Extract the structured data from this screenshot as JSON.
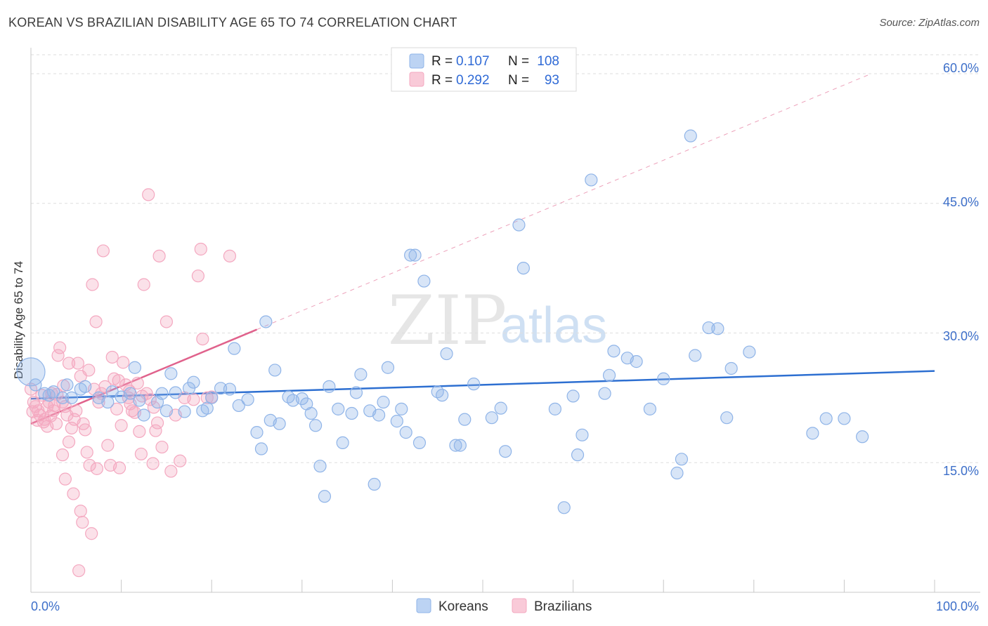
{
  "header": {
    "title": "KOREAN VS BRAZILIAN DISABILITY AGE 65 TO 74 CORRELATION CHART",
    "source": "Source: ZipAtlas.com"
  },
  "watermark": {
    "zip": "ZIP",
    "atlas": "atlas"
  },
  "colors": {
    "korean": "#8fb4e8",
    "korean_line": "#2d6fd1",
    "brazilian": "#f4a8c0",
    "brazilian_line": "#e0628c",
    "tick": "#3d6fc9",
    "grid": "#dedede"
  },
  "legend": {
    "korean": {
      "r_label": "R =",
      "r_value": "0.107",
      "n_label": "N =",
      "n_value": "108"
    },
    "brazilian": {
      "r_label": "R =",
      "r_value": "0.292",
      "n_label": "N =",
      "n_value": "93"
    }
  },
  "bottom_legend": {
    "korean": "Koreans",
    "brazilian": "Brazilians"
  },
  "chart_data": {
    "type": "scatter",
    "title": "KOREAN VS BRAZILIAN DISABILITY AGE 65 TO 74 CORRELATION CHART",
    "xlabel": "",
    "ylabel": "Disability Age 65 to 74",
    "xlim": [
      0,
      100
    ],
    "ylim": [
      0,
      63
    ],
    "x_tick_labels": [
      "0.0%",
      "100.0%"
    ],
    "y_ticks": [
      15,
      30,
      45,
      60
    ],
    "y_tick_labels": [
      "15.0%",
      "30.0%",
      "45.0%",
      "60.0%"
    ],
    "grid": true,
    "legend_position": "top-center",
    "series": [
      {
        "name": "Koreans",
        "r": 0.107,
        "n": 108,
        "trend": {
          "x": [
            0,
            100
          ],
          "y": [
            22.4,
            25.6
          ],
          "style": "solid"
        },
        "points": [
          [
            0,
            25.5
          ],
          [
            0.5,
            24
          ],
          [
            1.5,
            23
          ],
          [
            2,
            22.8
          ],
          [
            2.5,
            23.2
          ],
          [
            3.5,
            22.5
          ],
          [
            4,
            24
          ],
          [
            4.5,
            22.5
          ],
          [
            5.5,
            23.5
          ],
          [
            6,
            23.8
          ],
          [
            7.5,
            22.5
          ],
          [
            8.5,
            22
          ],
          [
            9,
            23.2
          ],
          [
            10,
            22.6
          ],
          [
            11,
            23
          ],
          [
            11.5,
            26
          ],
          [
            12,
            22.2
          ],
          [
            12.5,
            20.5
          ],
          [
            14,
            22
          ],
          [
            14.5,
            23
          ],
          [
            15,
            21
          ],
          [
            15.5,
            25.3
          ],
          [
            16,
            23.1
          ],
          [
            17,
            20.9
          ],
          [
            17.5,
            23.6
          ],
          [
            18,
            24.3
          ],
          [
            19,
            21
          ],
          [
            19.5,
            21.3
          ],
          [
            20,
            22.5
          ],
          [
            21,
            23.6
          ],
          [
            22,
            23.5
          ],
          [
            22.5,
            28.2
          ],
          [
            23,
            21.6
          ],
          [
            24,
            22.3
          ],
          [
            25,
            18.5
          ],
          [
            25.5,
            16.6
          ],
          [
            26,
            31.3
          ],
          [
            26.5,
            19.9
          ],
          [
            27,
            25.7
          ],
          [
            27.5,
            19.5
          ],
          [
            28.5,
            22.6
          ],
          [
            29,
            22.2
          ],
          [
            30,
            22.4
          ],
          [
            30.5,
            21.8
          ],
          [
            31,
            20.7
          ],
          [
            31.5,
            19.3
          ],
          [
            32,
            14.6
          ],
          [
            32.5,
            11.1
          ],
          [
            33,
            23.8
          ],
          [
            34,
            21.2
          ],
          [
            34.5,
            17.3
          ],
          [
            35.5,
            20.7
          ],
          [
            36,
            23.1
          ],
          [
            36.5,
            25.2
          ],
          [
            37.5,
            21
          ],
          [
            38,
            12.5
          ],
          [
            38.5,
            20.5
          ],
          [
            39,
            22
          ],
          [
            39.5,
            26
          ],
          [
            40.5,
            19.8
          ],
          [
            41,
            21.2
          ],
          [
            41.5,
            18.5
          ],
          [
            42,
            39
          ],
          [
            42.5,
            39
          ],
          [
            43,
            17.3
          ],
          [
            43.5,
            36
          ],
          [
            45,
            23.2
          ],
          [
            45.5,
            22.8
          ],
          [
            46,
            27.6
          ],
          [
            47,
            17
          ],
          [
            47.5,
            17
          ],
          [
            48,
            20
          ],
          [
            49,
            24.1
          ],
          [
            51,
            20.2
          ],
          [
            52,
            21.3
          ],
          [
            52.5,
            16.3
          ],
          [
            54,
            42.5
          ],
          [
            54.5,
            37.5
          ],
          [
            58,
            21.2
          ],
          [
            59,
            9.8
          ],
          [
            60,
            22.7
          ],
          [
            60.5,
            15.9
          ],
          [
            61,
            18.2
          ],
          [
            62,
            47.7
          ],
          [
            63.5,
            23
          ],
          [
            64,
            25.1
          ],
          [
            64.5,
            27.9
          ],
          [
            66,
            27.1
          ],
          [
            67,
            26.7
          ],
          [
            68.5,
            21.2
          ],
          [
            70,
            24.7
          ],
          [
            71.5,
            13.8
          ],
          [
            72,
            15.4
          ],
          [
            73,
            52.8
          ],
          [
            73.5,
            27.4
          ],
          [
            75,
            30.6
          ],
          [
            76,
            30.5
          ],
          [
            77,
            20.2
          ],
          [
            77.5,
            25.9
          ],
          [
            79.5,
            27.8
          ],
          [
            86.5,
            18.4
          ],
          [
            88,
            20.1
          ],
          [
            90,
            20.1
          ],
          [
            92,
            18
          ]
        ]
      },
      {
        "name": "Brazilians",
        "r": 0.292,
        "n": 93,
        "trend": {
          "x": [
            0,
            25
          ],
          "y": [
            19.5,
            30.4
          ],
          "style": "solid",
          "extension": {
            "x": [
              25,
              93
            ],
            "y": [
              30.4,
              60
            ],
            "style": "dashed"
          }
        },
        "points": [
          [
            0,
            23.5
          ],
          [
            0.3,
            22
          ],
          [
            0.5,
            21.5
          ],
          [
            0.8,
            21
          ],
          [
            1,
            20.5
          ],
          [
            1.2,
            22.8
          ],
          [
            1.5,
            20
          ],
          [
            1.8,
            21.5
          ],
          [
            2,
            22
          ],
          [
            2.3,
            23
          ],
          [
            2.5,
            21
          ],
          [
            2.8,
            19.5
          ],
          [
            3,
            27.4
          ],
          [
            3.2,
            28.3
          ],
          [
            3.5,
            22
          ],
          [
            3.8,
            21.5
          ],
          [
            4,
            20.5
          ],
          [
            4.2,
            26.5
          ],
          [
            4.5,
            19
          ],
          [
            4.8,
            20
          ],
          [
            5,
            21
          ],
          [
            5.2,
            26.5
          ],
          [
            5.5,
            25
          ],
          [
            5.8,
            19.5
          ],
          [
            6,
            18.8
          ],
          [
            6.2,
            16.2
          ],
          [
            6.5,
            14.7
          ],
          [
            6.8,
            35.6
          ],
          [
            7,
            23.5
          ],
          [
            7.3,
            14.3
          ],
          [
            7.5,
            22
          ],
          [
            7.8,
            23
          ],
          [
            8,
            39.5
          ],
          [
            8.2,
            23.8
          ],
          [
            8.5,
            17
          ],
          [
            8.8,
            14.7
          ],
          [
            9,
            27.2
          ],
          [
            9.2,
            24.7
          ],
          [
            9.5,
            21.2
          ],
          [
            9.8,
            14.4
          ],
          [
            10,
            19.3
          ],
          [
            10.2,
            26.6
          ],
          [
            10.5,
            24
          ],
          [
            10.8,
            22.5
          ],
          [
            11,
            21.8
          ],
          [
            11.2,
            21
          ],
          [
            11.5,
            20.8
          ],
          [
            11.8,
            24.2
          ],
          [
            12,
            18.6
          ],
          [
            12.2,
            16
          ],
          [
            12.5,
            35.6
          ],
          [
            12.8,
            23
          ],
          [
            13,
            46
          ],
          [
            13.2,
            22.3
          ],
          [
            13.5,
            14.9
          ],
          [
            13.8,
            18.7
          ],
          [
            14,
            19.6
          ],
          [
            14.2,
            38.9
          ],
          [
            14.5,
            16.8
          ],
          [
            15,
            31.3
          ],
          [
            15.5,
            14
          ],
          [
            16,
            20.5
          ],
          [
            16.5,
            15.2
          ],
          [
            17,
            22.5
          ],
          [
            18,
            22.3
          ],
          [
            18.5,
            36.6
          ],
          [
            18.8,
            39.7
          ],
          [
            19,
            29.3
          ],
          [
            19.5,
            22.5
          ],
          [
            20,
            22.6
          ],
          [
            22,
            38.9
          ],
          [
            7.2,
            31.3
          ],
          [
            5.5,
            9.4
          ],
          [
            5.7,
            8.1
          ],
          [
            6.7,
            6.8
          ],
          [
            5.3,
            2.5
          ],
          [
            3.8,
            13.1
          ],
          [
            4.2,
            17.4
          ],
          [
            4.7,
            11.4
          ],
          [
            3.5,
            15.9
          ],
          [
            1.8,
            19.2
          ],
          [
            2.2,
            20.4
          ],
          [
            2.6,
            21.6
          ],
          [
            1.4,
            19.7
          ],
          [
            0.7,
            19.9
          ],
          [
            0.2,
            20.9
          ],
          [
            2.9,
            22.9
          ],
          [
            3.6,
            23.9
          ],
          [
            6.4,
            25.7
          ],
          [
            9.7,
            24.5
          ],
          [
            10.9,
            23.3
          ],
          [
            12.3,
            22.7
          ],
          [
            13.6,
            21.4
          ]
        ]
      }
    ]
  }
}
